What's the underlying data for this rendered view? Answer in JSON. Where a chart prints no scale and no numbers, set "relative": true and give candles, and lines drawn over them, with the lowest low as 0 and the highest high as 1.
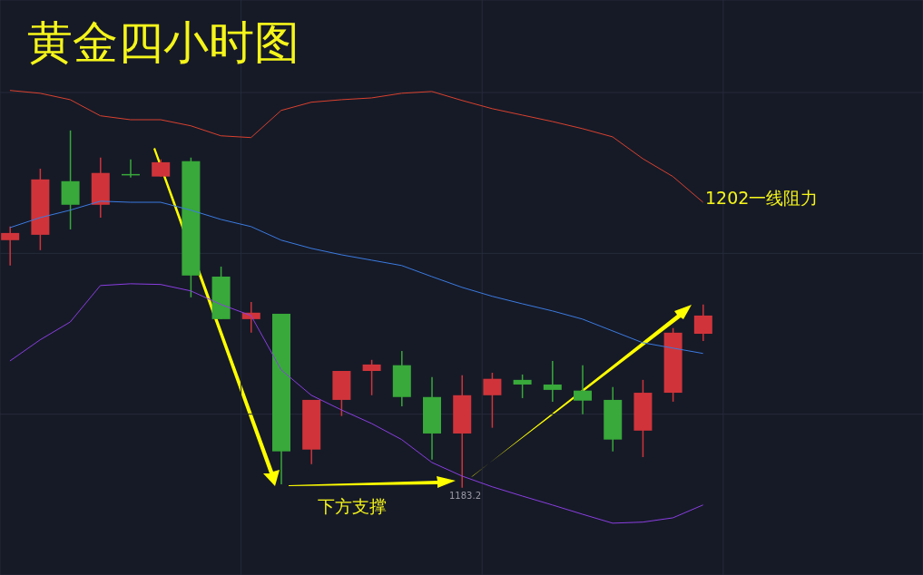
{
  "chart_data": {
    "type": "candlestick",
    "title": "黄金四小时图",
    "relative": true,
    "grid": true,
    "tick_labels": false,
    "categories": [
      null,
      null,
      null,
      null,
      null,
      null,
      null,
      null,
      null,
      null,
      null,
      null,
      null,
      null,
      null,
      null,
      null,
      null,
      null,
      null,
      null,
      null,
      null,
      null
    ],
    "ohlc": [
      [
        0.693,
        0.731,
        0.622,
        0.713
      ],
      [
        0.708,
        0.893,
        0.665,
        0.863
      ],
      [
        0.858,
        1,
        0.723,
        0.792
      ],
      [
        0.792,
        0.924,
        0.756,
        0.881
      ],
      [
        0.878,
        0.919,
        0.868,
        0.876
      ],
      [
        0.871,
        0.919,
        0.871,
        0.911
      ],
      [
        0.914,
        0.924,
        0.533,
        0.594
      ],
      [
        0.591,
        0.619,
        0.472,
        0.472
      ],
      [
        0.472,
        0.52,
        0.434,
        0.49
      ],
      [
        0.487,
        0.487,
        0.01,
        0.102
      ],
      [
        0.107,
        0.246,
        0.066,
        0.246
      ],
      [
        0.246,
        0.327,
        0.201,
        0.327
      ],
      [
        0.327,
        0.358,
        0.259,
        0.345
      ],
      [
        0.343,
        0.383,
        0.228,
        0.254
      ],
      [
        0.254,
        0.31,
        0.079,
        0.152
      ],
      [
        0.152,
        0.315,
        0,
        0.259
      ],
      [
        0.259,
        0.322,
        0.168,
        0.305
      ],
      [
        0.302,
        0.317,
        0.251,
        0.289
      ],
      [
        0.289,
        0.355,
        0.241,
        0.274
      ],
      [
        0.272,
        0.343,
        0.206,
        0.244
      ],
      [
        0.246,
        0.282,
        0.102,
        0.135
      ],
      [
        0.16,
        0.302,
        0.086,
        0.266
      ],
      [
        0.266,
        0.447,
        0.241,
        0.434
      ],
      [
        0.431,
        0.513,
        0.411,
        0.482
      ]
    ],
    "colors": [
      "#d0343a",
      "#d0343a",
      "#38a93a",
      "#d0343a",
      "#38a93a",
      "#d0343a",
      "#38a93a",
      "#38a93a",
      "#d0343a",
      "#38a93a",
      "#d0343a",
      "#d0343a",
      "#d0343a",
      "#38a93a",
      "#38a93a",
      "#d0343a",
      "#d0343a",
      "#38a93a",
      "#38a93a",
      "#38a93a",
      "#38a93a",
      "#d0343a",
      "#d0343a",
      "#d0343a"
    ],
    "series": [
      {
        "type": "line",
        "color": "#d9412e",
        "values": [
          1.112,
          1.104,
          1.086,
          1.041,
          1.03,
          1.03,
          1.013,
          0.985,
          0.98,
          1.056,
          1.079,
          1.086,
          1.091,
          1.104,
          1.109,
          1.084,
          1.061,
          1.043,
          1.025,
          1.005,
          0.982,
          0.921,
          0.871,
          0.799
        ]
      },
      {
        "type": "line",
        "color": "#3b7be0",
        "values": [
          0.728,
          0.756,
          0.777,
          0.802,
          0.799,
          0.799,
          0.777,
          0.751,
          0.731,
          0.693,
          0.67,
          0.652,
          0.637,
          0.622,
          0.591,
          0.561,
          0.536,
          0.515,
          0.495,
          0.472,
          0.439,
          0.406,
          0.391,
          0.376
        ]
      },
      {
        "type": "line",
        "color": "#8a3ee0",
        "values": [
          0.355,
          0.414,
          0.464,
          0.566,
          0.571,
          0.569,
          0.551,
          0.513,
          0.482,
          0.33,
          0.259,
          0.218,
          0.18,
          0.135,
          0.071,
          0.033,
          0.003,
          -0.023,
          -0.048,
          -0.074,
          -0.099,
          -0.096,
          -0.084,
          -0.048
        ]
      }
    ],
    "annotations": [
      "1202一线阻力",
      "下方支撑",
      "1183.2"
    ]
  }
}
